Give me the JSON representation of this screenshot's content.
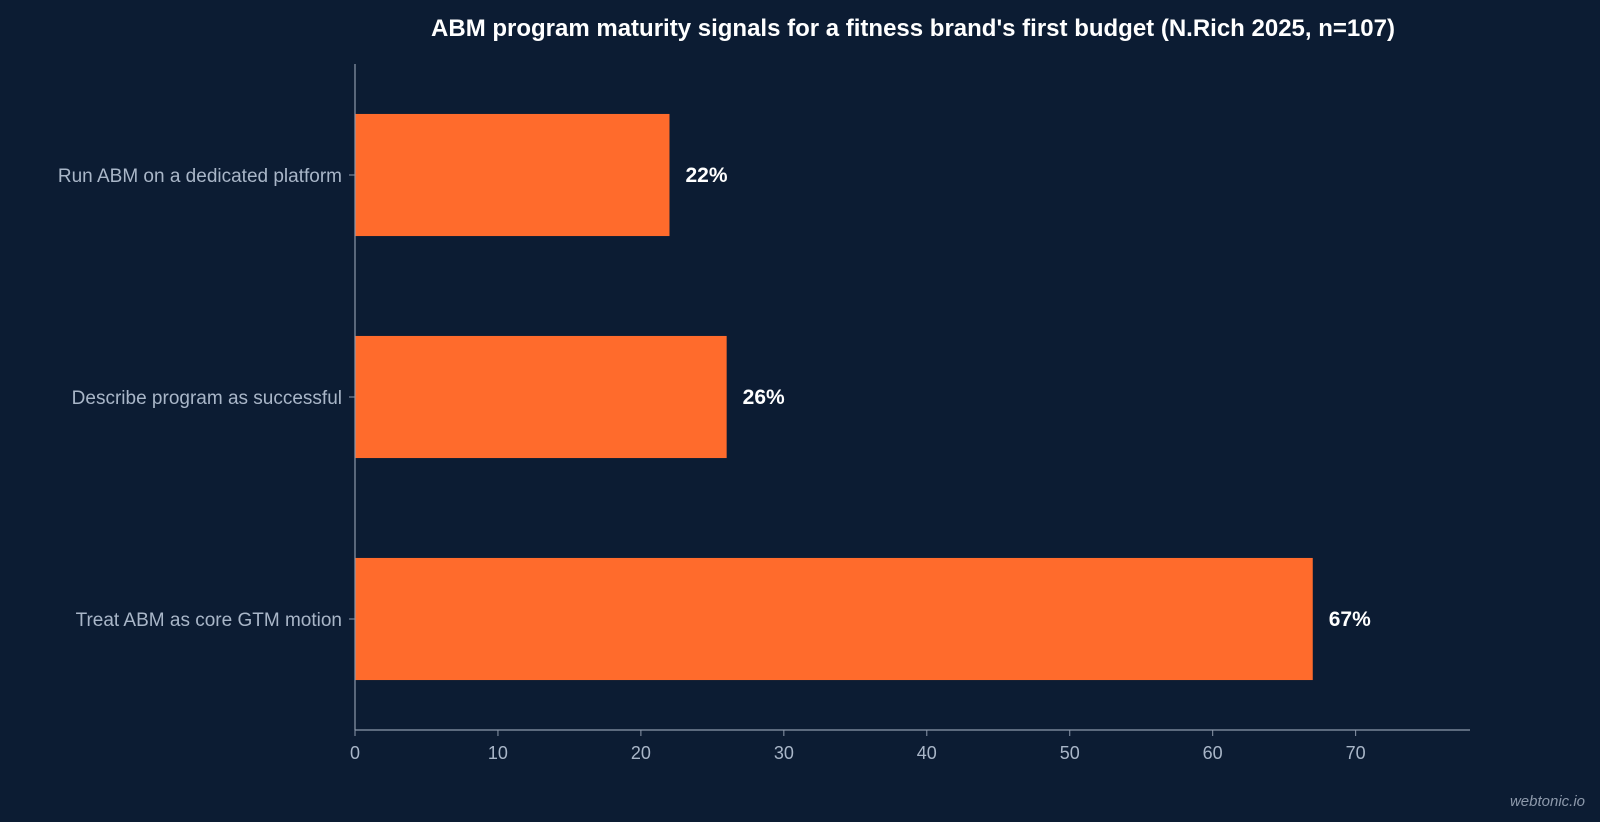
{
  "chart_data": {
    "type": "bar",
    "orientation": "horizontal",
    "title": "ABM program maturity signals for a fitness brand's first budget (N.Rich 2025, n=107)",
    "categories": [
      "Run ABM on a dedicated platform",
      "Describe program as successful",
      "Treat ABM as core GTM motion"
    ],
    "values": [
      22,
      26,
      67
    ],
    "value_labels": [
      "22%",
      "26%",
      "67%"
    ],
    "xlim": [
      0,
      78
    ],
    "xticks": [
      "0",
      "10",
      "20",
      "30",
      "40",
      "50",
      "60",
      "70"
    ],
    "xlabel": "",
    "ylabel": "",
    "grid": false,
    "legend": "none"
  },
  "watermark": "webtonic.io",
  "colors": {
    "background": "#0c1c33",
    "bar": "#ff6b2c",
    "axis": "#8d99ab",
    "text": "#a9b6c8",
    "value_text": "#ffffff"
  }
}
